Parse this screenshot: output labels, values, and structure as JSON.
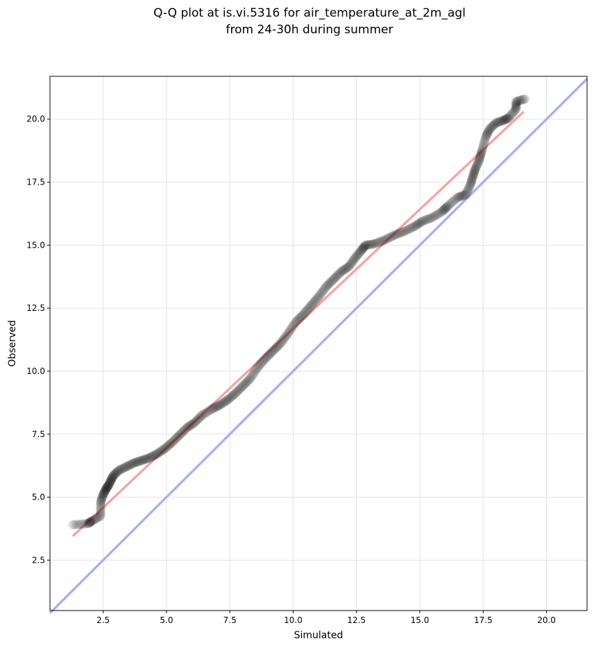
{
  "chart_data": {
    "type": "scatter",
    "title_lines": [
      "Q-Q plot at is.vi.5316 for air_temperature_at_2m_agl",
      "from 24-30h during summer"
    ],
    "xlabel": "Simulated",
    "ylabel": "Observed",
    "xlim": [
      0.4,
      21.6
    ],
    "ylim": [
      0.5,
      21.7
    ],
    "xticks": [
      2.5,
      5.0,
      7.5,
      10.0,
      12.5,
      15.0,
      17.5,
      20.0
    ],
    "yticks": [
      2.5,
      5.0,
      7.5,
      10.0,
      12.5,
      15.0,
      17.5,
      20.0
    ],
    "xtick_labels": [
      "2.5",
      "5.0",
      "7.5",
      "10.0",
      "12.5",
      "15.0",
      "17.5",
      "20.0"
    ],
    "ytick_labels": [
      "2.5",
      "5.0",
      "7.5",
      "10.0",
      "12.5",
      "15.0",
      "17.5",
      "20.0"
    ],
    "grid": true,
    "identity_line": {
      "from": [
        0.4,
        0.4
      ],
      "to": [
        21.6,
        21.6
      ],
      "color": "#aab0f4"
    },
    "fit_line": {
      "from": [
        1.3,
        3.45
      ],
      "to": [
        19.1,
        20.3
      ],
      "color": "#f5a5a5"
    },
    "quantile_points": [
      [
        1.3,
        3.9
      ],
      [
        1.9,
        3.95
      ],
      [
        2.05,
        4.05
      ],
      [
        2.4,
        4.25
      ],
      [
        2.4,
        4.8
      ],
      [
        2.5,
        5.1
      ],
      [
        2.6,
        5.3
      ],
      [
        2.7,
        5.45
      ],
      [
        2.8,
        5.65
      ],
      [
        2.9,
        5.85
      ],
      [
        3.1,
        6.05
      ],
      [
        3.4,
        6.2
      ],
      [
        3.7,
        6.35
      ],
      [
        4.0,
        6.45
      ],
      [
        4.3,
        6.55
      ],
      [
        4.6,
        6.7
      ],
      [
        4.9,
        6.9
      ],
      [
        5.2,
        7.15
      ],
      [
        5.5,
        7.45
      ],
      [
        5.8,
        7.75
      ],
      [
        6.1,
        7.95
      ],
      [
        6.4,
        8.25
      ],
      [
        6.8,
        8.5
      ],
      [
        7.1,
        8.65
      ],
      [
        7.4,
        8.85
      ],
      [
        7.7,
        9.1
      ],
      [
        8.0,
        9.4
      ],
      [
        8.3,
        9.7
      ],
      [
        8.6,
        10.15
      ],
      [
        8.9,
        10.5
      ],
      [
        9.2,
        10.8
      ],
      [
        9.5,
        11.1
      ],
      [
        9.8,
        11.5
      ],
      [
        10.1,
        11.95
      ],
      [
        10.4,
        12.25
      ],
      [
        10.7,
        12.6
      ],
      [
        11.0,
        12.95
      ],
      [
        11.3,
        13.35
      ],
      [
        11.6,
        13.65
      ],
      [
        11.9,
        13.95
      ],
      [
        12.2,
        14.15
      ],
      [
        12.45,
        14.5
      ],
      [
        12.7,
        14.8
      ],
      [
        12.85,
        15.0
      ],
      [
        13.2,
        15.05
      ],
      [
        13.6,
        15.2
      ],
      [
        14.0,
        15.4
      ],
      [
        14.4,
        15.55
      ],
      [
        14.8,
        15.75
      ],
      [
        15.1,
        15.95
      ],
      [
        15.5,
        16.1
      ],
      [
        15.9,
        16.35
      ],
      [
        16.1,
        16.55
      ],
      [
        16.5,
        16.9
      ],
      [
        16.8,
        17.0
      ],
      [
        17.0,
        17.4
      ],
      [
        17.1,
        17.75
      ],
      [
        17.2,
        18.05
      ],
      [
        17.35,
        18.4
      ],
      [
        17.45,
        18.75
      ],
      [
        17.6,
        19.3
      ],
      [
        17.75,
        19.6
      ],
      [
        18.0,
        19.85
      ],
      [
        18.3,
        19.95
      ],
      [
        18.5,
        20.05
      ],
      [
        18.8,
        20.4
      ],
      [
        18.8,
        20.7
      ],
      [
        19.15,
        20.8
      ]
    ]
  }
}
